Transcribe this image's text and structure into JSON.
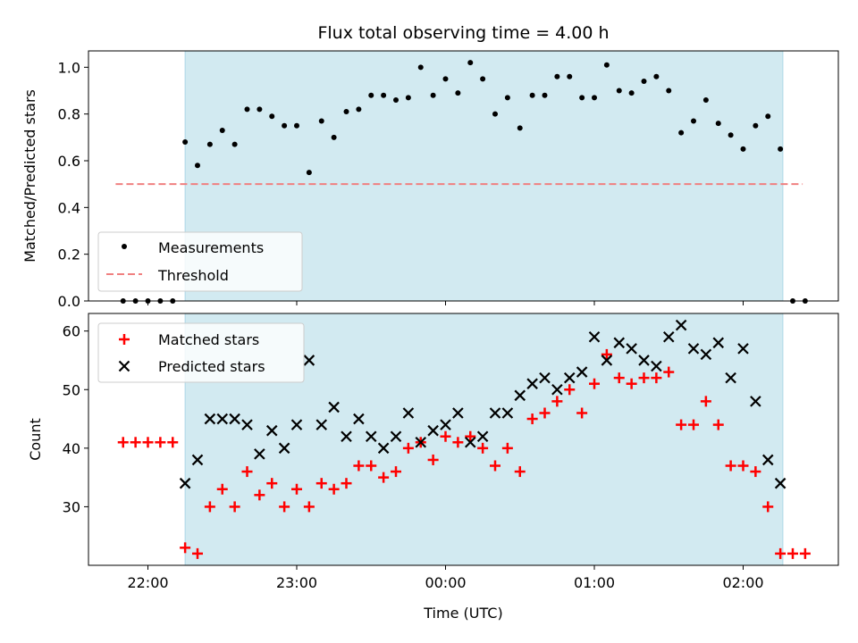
{
  "chart_data": [
    {
      "type": "scatter",
      "title": "Flux total observing time = 4.00 h",
      "xlabel": "",
      "ylabel": "Matched/Predicted stars",
      "ylim": [
        0,
        1.07
      ],
      "yticks": [
        "0.0",
        "0.2",
        "0.4",
        "0.6",
        "0.8",
        "1.0"
      ],
      "threshold": 0.5,
      "threshold_range": [
        "21:47",
        "22:24"
      ],
      "shade_range": [
        "22:15",
        "02:16"
      ],
      "legend": {
        "position": "lower-left",
        "entries": [
          "Measurements",
          "Threshold"
        ]
      },
      "series": [
        {
          "name": "Measurements",
          "x": [
            "21:50",
            "21:55",
            "22:00",
            "22:05",
            "22:10",
            "22:15",
            "22:20",
            "22:25",
            "22:30",
            "22:35",
            "22:40",
            "22:45",
            "22:50",
            "22:55",
            "23:00",
            "23:05",
            "23:10",
            "23:15",
            "23:20",
            "23:25",
            "23:30",
            "23:35",
            "23:40",
            "23:45",
            "23:50",
            "23:55",
            "00:00",
            "00:05",
            "00:10",
            "00:15",
            "00:20",
            "00:25",
            "00:30",
            "00:35",
            "00:40",
            "00:45",
            "00:50",
            "00:55",
            "01:00",
            "01:05",
            "01:10",
            "01:15",
            "01:20",
            "01:25",
            "01:30",
            "01:35",
            "01:40",
            "01:45",
            "01:50",
            "01:55",
            "02:00",
            "02:05",
            "02:10",
            "02:15",
            "02:20",
            "02:25"
          ],
          "values": [
            0,
            0,
            0,
            0,
            0,
            0.68,
            0.58,
            0.67,
            0.73,
            0.67,
            0.82,
            0.82,
            0.79,
            0.75,
            0.75,
            0.55,
            0.77,
            0.7,
            0.81,
            0.82,
            0.88,
            0.88,
            0.86,
            0.87,
            1.0,
            0.88,
            0.95,
            0.89,
            1.02,
            0.95,
            0.8,
            0.87,
            0.74,
            0.88,
            0.88,
            0.96,
            0.96,
            0.87,
            0.87,
            1.01,
            0.9,
            0.89,
            0.94,
            0.96,
            0.9,
            0.72,
            0.77,
            0.86,
            0.76,
            0.71,
            0.65,
            0.75,
            0.79,
            0.65,
            0,
            0
          ]
        }
      ]
    },
    {
      "type": "scatter",
      "title": "",
      "xlabel": "Time (UTC)",
      "ylabel": "Count",
      "ylim": [
        20,
        63
      ],
      "yticks": [
        "30",
        "40",
        "50",
        "60"
      ],
      "xticks": [
        "22:00",
        "23:00",
        "00:00",
        "01:00",
        "02:00"
      ],
      "shade_range": [
        "22:15",
        "02:16"
      ],
      "legend": {
        "position": "top-left",
        "entries": [
          "Matched stars",
          "Predicted stars"
        ]
      },
      "series": [
        {
          "name": "Matched stars",
          "x": [
            "21:50",
            "21:55",
            "22:00",
            "22:05",
            "22:10",
            "22:15",
            "22:20",
            "22:25",
            "22:30",
            "22:35",
            "22:40",
            "22:45",
            "22:50",
            "22:55",
            "23:00",
            "23:05",
            "23:10",
            "23:15",
            "23:20",
            "23:25",
            "23:30",
            "23:35",
            "23:40",
            "23:45",
            "23:50",
            "23:55",
            "00:00",
            "00:05",
            "00:10",
            "00:15",
            "00:20",
            "00:25",
            "00:30",
            "00:35",
            "00:40",
            "00:45",
            "00:50",
            "00:55",
            "01:00",
            "01:05",
            "01:10",
            "01:15",
            "01:20",
            "01:25",
            "01:30",
            "01:35",
            "01:40",
            "01:45",
            "01:50",
            "01:55",
            "02:00",
            "02:05",
            "02:10",
            "02:15",
            "02:20",
            "02:25"
          ],
          "values": [
            41,
            41,
            41,
            41,
            41,
            23,
            22,
            30,
            33,
            30,
            36,
            32,
            34,
            30,
            33,
            30,
            34,
            33,
            34,
            37,
            37,
            35,
            36,
            40,
            41,
            38,
            42,
            41,
            42,
            40,
            37,
            40,
            36,
            45,
            46,
            48,
            50,
            46,
            51,
            56,
            52,
            51,
            52,
            52,
            53,
            44,
            44,
            48,
            44,
            37,
            37,
            36,
            30,
            22,
            22,
            22
          ]
        },
        {
          "name": "Predicted stars",
          "x": [
            "22:15",
            "22:20",
            "22:25",
            "22:30",
            "22:35",
            "22:40",
            "22:45",
            "22:50",
            "22:55",
            "23:00",
            "23:05",
            "23:10",
            "23:15",
            "23:20",
            "23:25",
            "23:30",
            "23:35",
            "23:40",
            "23:45",
            "23:50",
            "23:55",
            "00:00",
            "00:05",
            "00:10",
            "00:15",
            "00:20",
            "00:25",
            "00:30",
            "00:35",
            "00:40",
            "00:45",
            "00:50",
            "00:55",
            "01:00",
            "01:05",
            "01:10",
            "01:15",
            "01:20",
            "01:25",
            "01:30",
            "01:35",
            "01:40",
            "01:45",
            "01:50",
            "01:55",
            "02:00",
            "02:05",
            "02:10",
            "02:15"
          ],
          "values": [
            34,
            38,
            45,
            45,
            45,
            44,
            39,
            43,
            40,
            44,
            55,
            44,
            47,
            42,
            45,
            42,
            40,
            42,
            46,
            41,
            43,
            44,
            46,
            41,
            42,
            46,
            46,
            49,
            51,
            52,
            50,
            52,
            53,
            59,
            55,
            58,
            57,
            55,
            54,
            59,
            61,
            57,
            56,
            58,
            52,
            57,
            48,
            38,
            34
          ]
        }
      ]
    }
  ],
  "colors": {
    "shade": "#add8e6",
    "measurement": "#000000",
    "threshold": "#f08080",
    "matched": "#ff0000",
    "predicted": "#000000"
  }
}
